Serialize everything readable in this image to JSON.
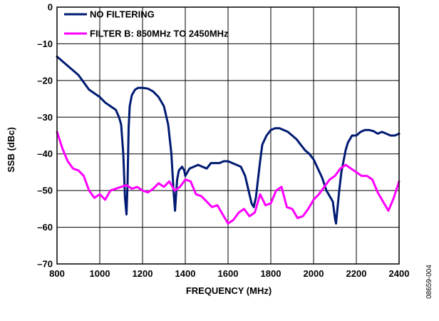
{
  "figure_id": "08659-004",
  "chart_data": {
    "type": "line",
    "xlabel": "FREQUENCY (MHz)",
    "ylabel": "SSB (dBc)",
    "xlim": [
      800,
      2400
    ],
    "ylim": [
      -70,
      0
    ],
    "xticks": [
      "800",
      "1000",
      "1200",
      "1400",
      "1600",
      "1800",
      "2000",
      "2200",
      "2400"
    ],
    "yticks": [
      "0",
      "–10",
      "–20",
      "–30",
      "–40",
      "–50",
      "–60",
      "–70"
    ],
    "grid": true,
    "legend_position": "top-left",
    "series": [
      {
        "name": "NO FILTERING",
        "color": "#001a72",
        "x": [
          800,
          850,
          900,
          950,
          975,
          1000,
          1025,
          1050,
          1075,
          1090,
          1100,
          1110,
          1118,
          1125,
          1130,
          1135,
          1140,
          1150,
          1165,
          1180,
          1200,
          1225,
          1250,
          1275,
          1300,
          1320,
          1335,
          1345,
          1352,
          1358,
          1362,
          1370,
          1385,
          1395,
          1400,
          1420,
          1440,
          1460,
          1480,
          1500,
          1520,
          1540,
          1560,
          1580,
          1600,
          1620,
          1640,
          1660,
          1680,
          1700,
          1710,
          1720,
          1730,
          1740,
          1750,
          1760,
          1780,
          1800,
          1820,
          1840,
          1860,
          1880,
          1900,
          1920,
          1940,
          1960,
          1980,
          2000,
          2020,
          2040,
          2060,
          2080,
          2090,
          2100,
          2105,
          2110,
          2120,
          2130,
          2140,
          2150,
          2160,
          2170,
          2180,
          2190,
          2200,
          2220,
          2240,
          2260,
          2280,
          2300,
          2320,
          2340,
          2360,
          2380,
          2400
        ],
        "y": [
          -13.5,
          -16,
          -18.5,
          -22.5,
          -23.5,
          -24.5,
          -26,
          -27,
          -28,
          -30,
          -32,
          -40,
          -52,
          -56.5,
          -48,
          -33,
          -27,
          -24,
          -22.5,
          -22,
          -22,
          -22.2,
          -23,
          -24.5,
          -27,
          -32,
          -40,
          -50,
          -55.5,
          -50,
          -47,
          -44.5,
          -43.5,
          -44.5,
          -46,
          -44,
          -43.5,
          -43,
          -43.5,
          -44,
          -42.5,
          -42.5,
          -42.5,
          -42,
          -42,
          -42.5,
          -43,
          -43.5,
          -46,
          -51,
          -53.5,
          -54.5,
          -52,
          -47,
          -42,
          -37.5,
          -35,
          -33.5,
          -33,
          -33,
          -33.5,
          -34,
          -35,
          -36,
          -37.5,
          -39,
          -40,
          -41.5,
          -44,
          -46.5,
          -50,
          -52,
          -53,
          -57.5,
          -59,
          -56,
          -50,
          -45,
          -42,
          -39,
          -37,
          -36,
          -35,
          -35,
          -35,
          -34,
          -33.5,
          -33.5,
          -33.8,
          -34.5,
          -34,
          -34.5,
          -35,
          -35,
          -34.5
        ]
      },
      {
        "name": "FILTER B: 850MHz TO 2450MHz",
        "color": "#ff00ff",
        "x": [
          800,
          825,
          850,
          875,
          900,
          925,
          950,
          975,
          1000,
          1025,
          1050,
          1075,
          1100,
          1125,
          1150,
          1175,
          1200,
          1225,
          1250,
          1275,
          1300,
          1325,
          1350,
          1375,
          1400,
          1425,
          1450,
          1475,
          1500,
          1525,
          1550,
          1575,
          1600,
          1625,
          1650,
          1675,
          1700,
          1725,
          1750,
          1775,
          1800,
          1825,
          1850,
          1875,
          1900,
          1925,
          1950,
          1975,
          2000,
          2025,
          2050,
          2075,
          2100,
          2125,
          2150,
          2175,
          2200,
          2225,
          2250,
          2275,
          2300,
          2325,
          2350,
          2375,
          2400
        ],
        "y": [
          -34,
          -38.5,
          -42,
          -44,
          -44.5,
          -46,
          -50,
          -52,
          -51,
          -52.5,
          -50,
          -49.5,
          -49,
          -48.5,
          -49.5,
          -49,
          -50,
          -50.5,
          -49.5,
          -48,
          -49,
          -47.5,
          -50,
          -49,
          -47,
          -47.5,
          -51,
          -51.5,
          -53,
          -54.5,
          -54,
          -56.5,
          -59,
          -58,
          -56,
          -55,
          -57,
          -56,
          -51,
          -54,
          -53.5,
          -50,
          -49,
          -54.5,
          -55,
          -57.5,
          -57,
          -55,
          -52.5,
          -51,
          -49,
          -47,
          -46,
          -44,
          -43,
          -44,
          -45,
          -46,
          -46,
          -47,
          -50.5,
          -53,
          -55.5,
          -52,
          -47.5
        ]
      }
    ]
  }
}
